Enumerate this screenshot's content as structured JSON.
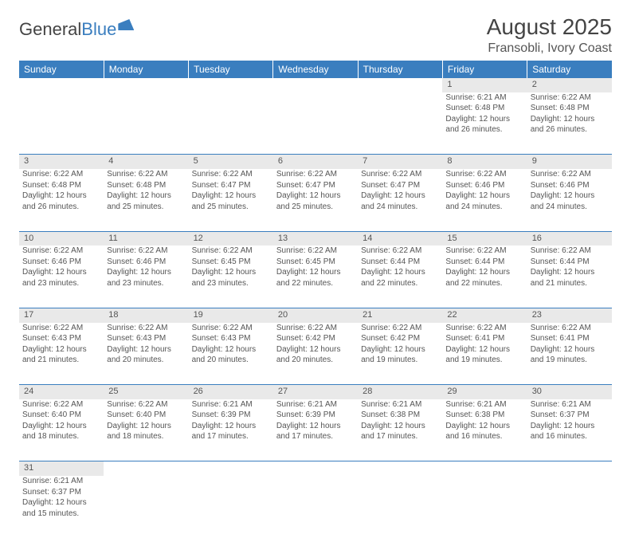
{
  "logo": {
    "text_a": "General",
    "text_b": "Blue"
  },
  "title": "August 2025",
  "location": "Fransobli, Ivory Coast",
  "columns": [
    "Sunday",
    "Monday",
    "Tuesday",
    "Wednesday",
    "Thursday",
    "Friday",
    "Saturday"
  ],
  "colors": {
    "header_bg": "#3a7ebf",
    "header_text": "#ffffff",
    "daynum_bg": "#e9e9e9",
    "border": "#3a7ebf",
    "text": "#555555",
    "background": "#ffffff"
  },
  "fonts": {
    "title_size_pt": 21,
    "location_size_pt": 12,
    "header_size_pt": 9,
    "cell_size_pt": 7.5,
    "daynum_size_pt": 8.5
  },
  "type": "calendar-table",
  "weeks": [
    [
      null,
      null,
      null,
      null,
      null,
      {
        "n": "1",
        "sunrise": "6:21 AM",
        "sunset": "6:48 PM",
        "day_h": "12",
        "day_m": "26"
      },
      {
        "n": "2",
        "sunrise": "6:22 AM",
        "sunset": "6:48 PM",
        "day_h": "12",
        "day_m": "26"
      }
    ],
    [
      {
        "n": "3",
        "sunrise": "6:22 AM",
        "sunset": "6:48 PM",
        "day_h": "12",
        "day_m": "26"
      },
      {
        "n": "4",
        "sunrise": "6:22 AM",
        "sunset": "6:48 PM",
        "day_h": "12",
        "day_m": "25"
      },
      {
        "n": "5",
        "sunrise": "6:22 AM",
        "sunset": "6:47 PM",
        "day_h": "12",
        "day_m": "25"
      },
      {
        "n": "6",
        "sunrise": "6:22 AM",
        "sunset": "6:47 PM",
        "day_h": "12",
        "day_m": "25"
      },
      {
        "n": "7",
        "sunrise": "6:22 AM",
        "sunset": "6:47 PM",
        "day_h": "12",
        "day_m": "24"
      },
      {
        "n": "8",
        "sunrise": "6:22 AM",
        "sunset": "6:46 PM",
        "day_h": "12",
        "day_m": "24"
      },
      {
        "n": "9",
        "sunrise": "6:22 AM",
        "sunset": "6:46 PM",
        "day_h": "12",
        "day_m": "24"
      }
    ],
    [
      {
        "n": "10",
        "sunrise": "6:22 AM",
        "sunset": "6:46 PM",
        "day_h": "12",
        "day_m": "23"
      },
      {
        "n": "11",
        "sunrise": "6:22 AM",
        "sunset": "6:46 PM",
        "day_h": "12",
        "day_m": "23"
      },
      {
        "n": "12",
        "sunrise": "6:22 AM",
        "sunset": "6:45 PM",
        "day_h": "12",
        "day_m": "23"
      },
      {
        "n": "13",
        "sunrise": "6:22 AM",
        "sunset": "6:45 PM",
        "day_h": "12",
        "day_m": "22"
      },
      {
        "n": "14",
        "sunrise": "6:22 AM",
        "sunset": "6:44 PM",
        "day_h": "12",
        "day_m": "22"
      },
      {
        "n": "15",
        "sunrise": "6:22 AM",
        "sunset": "6:44 PM",
        "day_h": "12",
        "day_m": "22"
      },
      {
        "n": "16",
        "sunrise": "6:22 AM",
        "sunset": "6:44 PM",
        "day_h": "12",
        "day_m": "21"
      }
    ],
    [
      {
        "n": "17",
        "sunrise": "6:22 AM",
        "sunset": "6:43 PM",
        "day_h": "12",
        "day_m": "21"
      },
      {
        "n": "18",
        "sunrise": "6:22 AM",
        "sunset": "6:43 PM",
        "day_h": "12",
        "day_m": "20"
      },
      {
        "n": "19",
        "sunrise": "6:22 AM",
        "sunset": "6:43 PM",
        "day_h": "12",
        "day_m": "20"
      },
      {
        "n": "20",
        "sunrise": "6:22 AM",
        "sunset": "6:42 PM",
        "day_h": "12",
        "day_m": "20"
      },
      {
        "n": "21",
        "sunrise": "6:22 AM",
        "sunset": "6:42 PM",
        "day_h": "12",
        "day_m": "19"
      },
      {
        "n": "22",
        "sunrise": "6:22 AM",
        "sunset": "6:41 PM",
        "day_h": "12",
        "day_m": "19"
      },
      {
        "n": "23",
        "sunrise": "6:22 AM",
        "sunset": "6:41 PM",
        "day_h": "12",
        "day_m": "19"
      }
    ],
    [
      {
        "n": "24",
        "sunrise": "6:22 AM",
        "sunset": "6:40 PM",
        "day_h": "12",
        "day_m": "18"
      },
      {
        "n": "25",
        "sunrise": "6:22 AM",
        "sunset": "6:40 PM",
        "day_h": "12",
        "day_m": "18"
      },
      {
        "n": "26",
        "sunrise": "6:21 AM",
        "sunset": "6:39 PM",
        "day_h": "12",
        "day_m": "17"
      },
      {
        "n": "27",
        "sunrise": "6:21 AM",
        "sunset": "6:39 PM",
        "day_h": "12",
        "day_m": "17"
      },
      {
        "n": "28",
        "sunrise": "6:21 AM",
        "sunset": "6:38 PM",
        "day_h": "12",
        "day_m": "17"
      },
      {
        "n": "29",
        "sunrise": "6:21 AM",
        "sunset": "6:38 PM",
        "day_h": "12",
        "day_m": "16"
      },
      {
        "n": "30",
        "sunrise": "6:21 AM",
        "sunset": "6:37 PM",
        "day_h": "12",
        "day_m": "16"
      }
    ],
    [
      {
        "n": "31",
        "sunrise": "6:21 AM",
        "sunset": "6:37 PM",
        "day_h": "12",
        "day_m": "15"
      },
      null,
      null,
      null,
      null,
      null,
      null
    ]
  ],
  "labels": {
    "sunrise": "Sunrise:",
    "sunset": "Sunset:",
    "daylight": "Daylight:",
    "hours": "hours",
    "and": "and",
    "minutes": "minutes."
  }
}
